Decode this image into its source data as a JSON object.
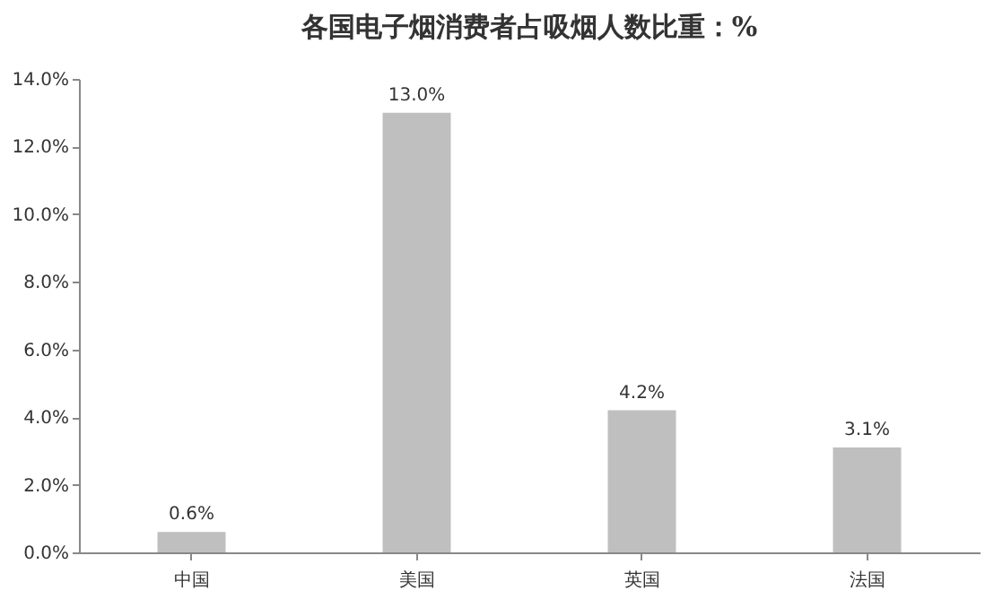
{
  "chart_data": {
    "type": "bar",
    "title": "各国电子烟消费者占吸烟人数比重：%",
    "categories": [
      "中国",
      "美国",
      "英国",
      "法国"
    ],
    "values": [
      0.6,
      13.0,
      4.2,
      3.1
    ],
    "value_labels": [
      "0.6%",
      "13.0%",
      "4.2%",
      "3.1%"
    ],
    "color": "#bfbfbf",
    "ylim": [
      0,
      14
    ],
    "yticks": [
      {
        "value": 0,
        "label": "0.0%"
      },
      {
        "value": 2,
        "label": "2.0%"
      },
      {
        "value": 4,
        "label": "4.0%"
      },
      {
        "value": 6,
        "label": "6.0%"
      },
      {
        "value": 8,
        "label": "8.0%"
      },
      {
        "value": 10,
        "label": "10.0%"
      },
      {
        "value": 12,
        "label": "12.0%"
      },
      {
        "value": 14,
        "label": "14.0%"
      }
    ],
    "grid": false
  }
}
